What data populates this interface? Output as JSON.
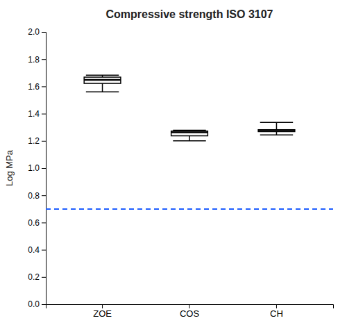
{
  "chart_data": {
    "type": "box",
    "title": "Compressive strength ISO 3107",
    "y_label": "Log MPa",
    "categories": [
      "ZOE",
      "COS",
      "CH"
    ],
    "boxes": [
      {
        "q1": 1.622,
        "median": 1.648,
        "q3": 1.668,
        "whislo": 1.56,
        "whishi": 1.682
      },
      {
        "q1": 1.237,
        "median": 1.263,
        "q3": 1.272,
        "whislo": 1.2,
        "whishi": 1.278
      },
      {
        "q1": 1.268,
        "median": 1.278,
        "q3": 1.282,
        "whislo": 1.243,
        "whishi": 1.335
      }
    ],
    "color": "black",
    "reference_line": {
      "y": 0.699,
      "color": "#1F5EFF",
      "line_style": "dashed"
    },
    "ylim": [
      0.0,
      2.0
    ],
    "yticks": [
      {
        "value": 0.0,
        "label": "0.0"
      },
      0.2,
      0.4,
      0.6,
      0.8,
      {
        "value": 1.0,
        "label": "1.0"
      },
      1.2,
      1.4,
      1.6,
      1.8,
      {
        "value": 2.0,
        "label": "2.0"
      }
    ]
  }
}
